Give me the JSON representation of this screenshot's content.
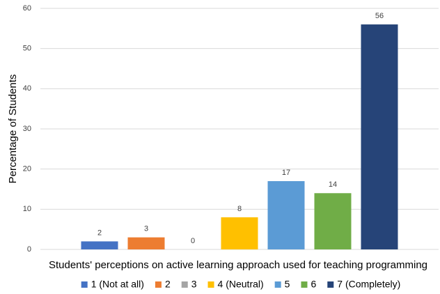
{
  "chart_data": {
    "type": "bar",
    "y_label": "Percentage of Students",
    "x_label": "Students' perceptions on active learning approach used for teaching programming",
    "series": [
      {
        "name": "1 (Not at all)",
        "color": "#4472c4",
        "values": [
          2
        ]
      },
      {
        "name": "2",
        "color": "#ed7d31",
        "values": [
          3
        ]
      },
      {
        "name": "3",
        "color": "#a5a5a5",
        "values": [
          0
        ]
      },
      {
        "name": "4 (Neutral)",
        "color": "#ffc000",
        "values": [
          8
        ]
      },
      {
        "name": "5",
        "color": "#5b9bd5",
        "values": [
          17
        ]
      },
      {
        "name": "6",
        "color": "#70ad47",
        "values": [
          14
        ]
      },
      {
        "name": "7 (Completely)",
        "color": "#264478",
        "values": [
          56
        ]
      }
    ],
    "ylim": [
      0,
      60
    ],
    "yticks": [
      0,
      10,
      20,
      30,
      40,
      50,
      60
    ],
    "grid": true,
    "legend": "bottom"
  }
}
